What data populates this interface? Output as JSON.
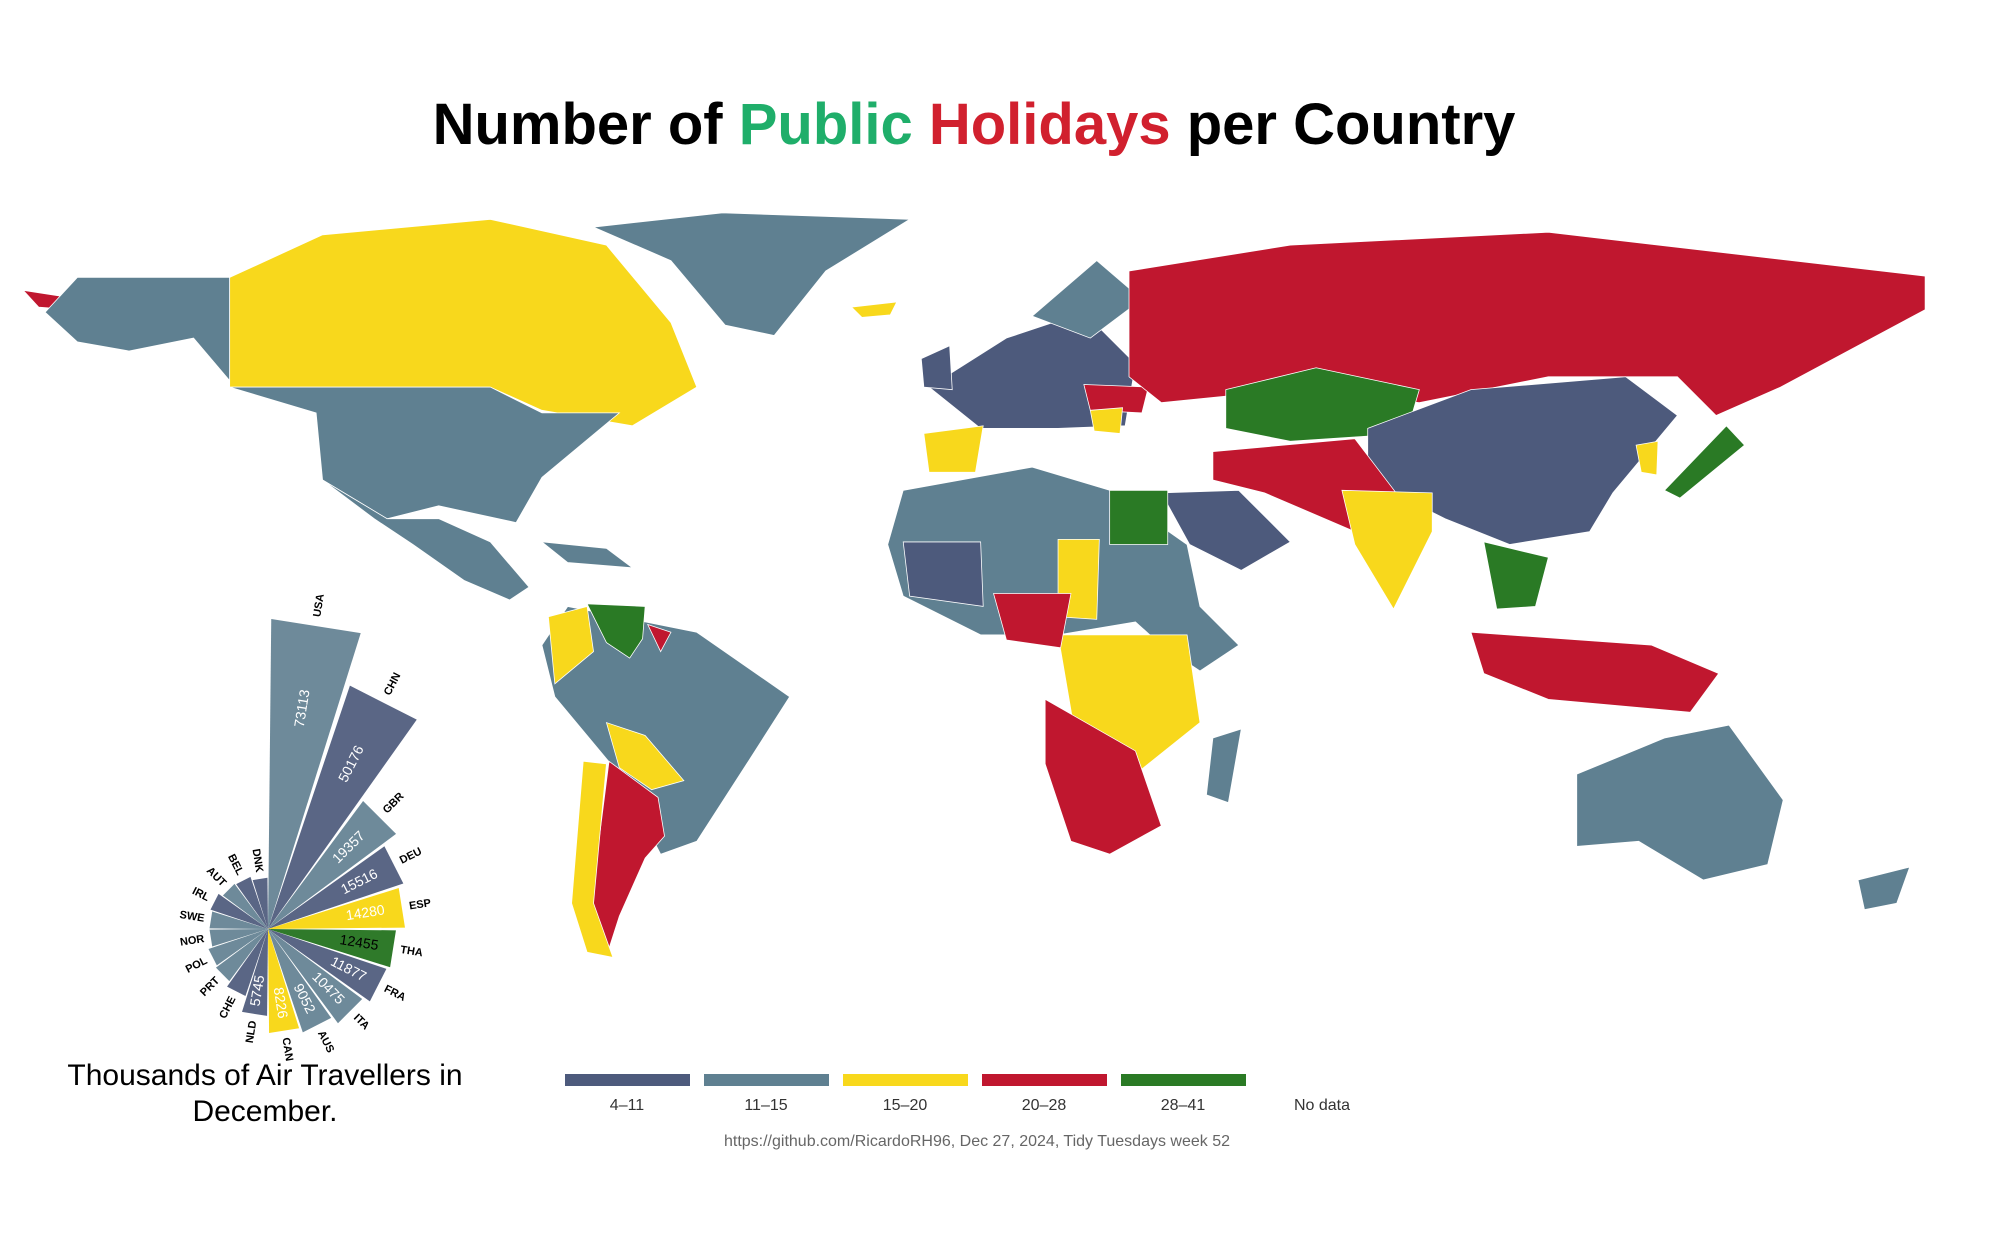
{
  "chart_data": {
    "type": "radial_bar",
    "title_parts": [
      {
        "text": "Number of",
        "color": "#000000"
      },
      {
        "text": "Public",
        "color": "#1fae6a"
      },
      {
        "text": "Holidays",
        "color": "#d1202e"
      },
      {
        "text": "per Country",
        "color": "#000000"
      }
    ],
    "categories": [
      "USA",
      "CHN",
      "GBR",
      "DEU",
      "ESP",
      "THA",
      "FRA",
      "ITA",
      "AUS",
      "CAN",
      "NLD",
      "CHE",
      "PRT",
      "POL",
      "NOR",
      "SWE",
      "IRL",
      "AUT",
      "BEL",
      "DNK"
    ],
    "values": [
      73113,
      50176,
      19357,
      15516,
      14280,
      12455,
      11877,
      10475,
      9052,
      8226,
      5745,
      3800,
      3200,
      3000,
      2600,
      2600,
      2800,
      2400,
      2300,
      2000
    ],
    "value_labels": [
      "73113",
      "50176",
      "19357",
      "15516",
      "14280",
      "12455",
      "11877",
      "10475",
      "9052",
      "8226",
      "5745",
      null,
      null,
      null,
      null,
      null,
      null,
      null,
      null,
      null
    ],
    "colors": [
      "#6e8a9a",
      "#5a6685",
      "#6e8a9a",
      "#5a6685",
      "#f8d81c",
      "#2f7a2a",
      "#5a6685",
      "#6e8a9a",
      "#6e8a9a",
      "#f8d81c",
      "#5a6685",
      "#5a6685",
      "#6e8a9a",
      "#6e8a9a",
      "#6e8a9a",
      "#6e8a9a",
      "#5a6685",
      "#6e8a9a",
      "#5a6685",
      "#5a6685"
    ],
    "caption": "Thousands of Air Travellers in December.",
    "legend": [
      {
        "label": "4–11",
        "color": "#4d5a7c"
      },
      {
        "label": "11–15",
        "color": "#5f8091"
      },
      {
        "label": "15–20",
        "color": "#f8d81c"
      },
      {
        "label": "20–28",
        "color": "#c0172f"
      },
      {
        "label": "28–41",
        "color": "#2a7a25"
      },
      {
        "label": "No data",
        "color": "none"
      }
    ],
    "source": "https://github.com/RicardoRH96, Dec 27, 2024, Tidy Tuesdays week 52"
  }
}
